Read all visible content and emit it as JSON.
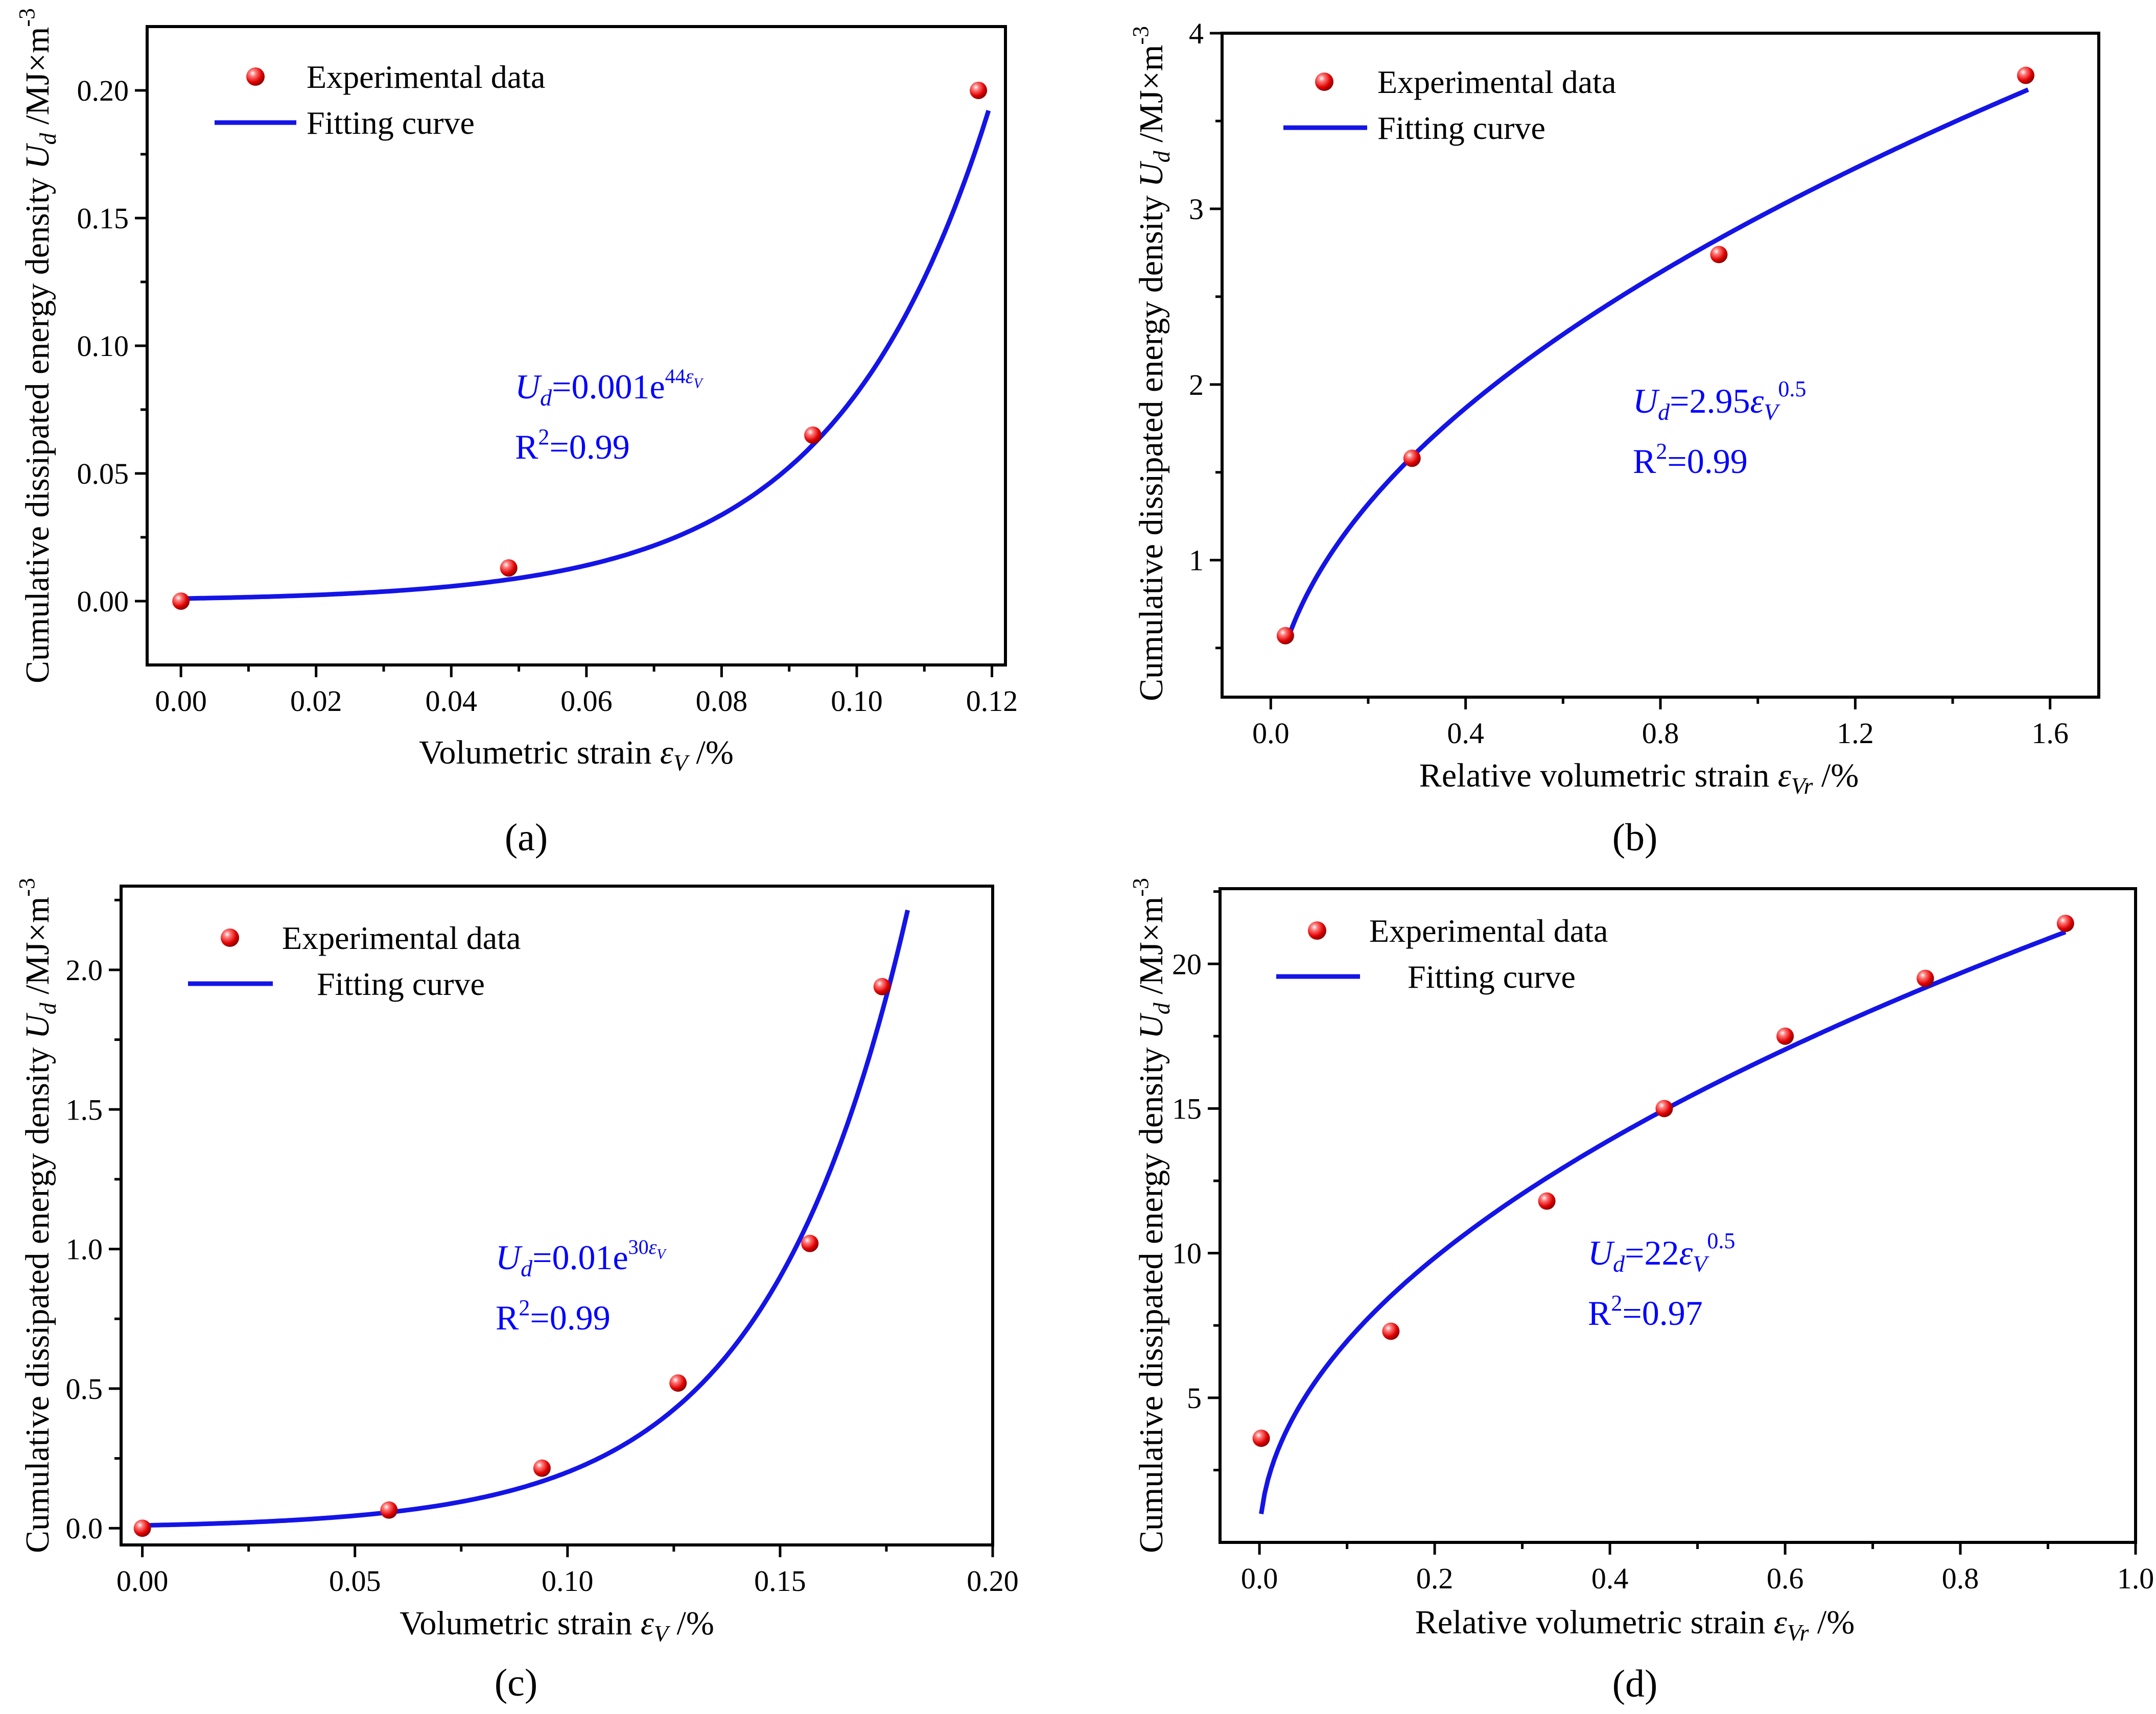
{
  "colors": {
    "point": "#e00000",
    "curve": "#1414e6",
    "annotation": "#0000ff",
    "axis": "#000000"
  },
  "chart_data": [
    {
      "panel": "(a)",
      "type": "scatter",
      "xlabel_main": "Volumetric strain",
      "xlabel_sym": "ε",
      "xlabel_sub": "V",
      "xlabel_unit": " /%",
      "ylabel_main": "Cumulative dissipated energy density ",
      "ylabel_sym": "U",
      "ylabel_sub": "d",
      "ylabel_unit": " /MJ×m",
      "ylabel_sup": "-3",
      "xlim": [
        -0.005,
        0.122
      ],
      "ylim": [
        -0.025,
        0.225
      ],
      "xticks": [
        0.0,
        0.02,
        0.04,
        0.06,
        0.08,
        0.1,
        0.12
      ],
      "xtick_labels": [
        "0.00",
        "0.02",
        "0.04",
        "0.06",
        "0.08",
        "0.10",
        "0.12"
      ],
      "yticks": [
        0.0,
        0.05,
        0.1,
        0.15,
        0.2
      ],
      "ytick_labels": [
        "0.00",
        "0.05",
        "0.10",
        "0.15",
        "0.20"
      ],
      "series": [
        {
          "name": "Experimental data",
          "kind": "points",
          "x": [
            0.0,
            0.0485,
            0.0935,
            0.118
          ],
          "y": [
            0.0,
            0.013,
            0.065,
            0.2
          ]
        },
        {
          "name": "Fitting curve",
          "kind": "fit",
          "model": "exp",
          "a": 0.001,
          "b": 44,
          "x_range": [
            0.0,
            0.1195
          ]
        }
      ],
      "legend": {
        "points": "Experimental data",
        "curve": "Fitting curve",
        "position": "top-left"
      },
      "annotation": {
        "eq_sym": "U",
        "eq_sub": "d",
        "eq_rhs": "=0.001e",
        "eq_exp": "44",
        "eq_exp_sym": "ε",
        "eq_exp_sub": "V",
        "r2_lead": "R",
        "r2_sup": "2",
        "r2_rest": "=0.99"
      }
    },
    {
      "panel": "(b)",
      "type": "scatter",
      "xlabel_main": "Relative volumetric strain",
      "xlabel_sym": "ε",
      "xlabel_sub": "Vr",
      "xlabel_unit": " /%",
      "ylabel_main": "Cumulative dissipated energy density ",
      "ylabel_sym": "U",
      "ylabel_sub": "d",
      "ylabel_unit": " /MJ×m",
      "ylabel_sup": "-3",
      "xlim": [
        -0.1,
        1.7
      ],
      "ylim": [
        0.22,
        4.0
      ],
      "xticks": [
        0.0,
        0.4,
        0.8,
        1.2,
        1.6
      ],
      "xtick_labels": [
        "0.0",
        "0.4",
        "0.8",
        "1.2",
        "1.6"
      ],
      "yticks": [
        1,
        2,
        3,
        4
      ],
      "ytick_labels": [
        "1",
        "2",
        "3",
        "4"
      ],
      "series": [
        {
          "name": "Experimental data",
          "kind": "points",
          "x": [
            0.03,
            0.29,
            0.92,
            1.55
          ],
          "y": [
            0.57,
            1.58,
            2.74,
            3.76
          ]
        },
        {
          "name": "Fitting curve",
          "kind": "fit",
          "model": "sqrt",
          "a": 2.95,
          "p": 0.5,
          "x_range": [
            0.035,
            1.555
          ]
        }
      ],
      "legend": {
        "points": "Experimental data",
        "curve": "Fitting curve",
        "position": "top-left"
      },
      "annotation": {
        "eq_sym": "U",
        "eq_sub": "d",
        "eq_rhs": "=2.95",
        "eq_var": "ε",
        "eq_var_sub": "V",
        "eq_pow": "0.5",
        "r2_lead": "R",
        "r2_sup": "2",
        "r2_rest": "=0.99"
      }
    },
    {
      "panel": "(c)",
      "type": "scatter",
      "xlabel_main": "Volumetric strain",
      "xlabel_sym": "ε",
      "xlabel_sub": "V",
      "xlabel_unit": " /%",
      "ylabel_main": "Cumulative dissipated energy density ",
      "ylabel_sym": "U",
      "ylabel_sub": "d",
      "ylabel_unit": " /MJ×m",
      "ylabel_sup": "-3",
      "xlim": [
        -0.005,
        0.2
      ],
      "ylim": [
        -0.06,
        2.3
      ],
      "xticks": [
        0.0,
        0.05,
        0.1,
        0.15,
        0.2
      ],
      "xtick_labels": [
        "0.00",
        "0.05",
        "0.10",
        "0.15",
        "0.20"
      ],
      "yticks": [
        0.0,
        0.5,
        1.0,
        1.5,
        2.0
      ],
      "ytick_labels": [
        "0.0",
        "0.5",
        "1.0",
        "1.5",
        "2.0"
      ],
      "series": [
        {
          "name": "Experimental data",
          "kind": "points",
          "x": [
            0.0,
            0.058,
            0.094,
            0.126,
            0.157,
            0.174
          ],
          "y": [
            0.0,
            0.065,
            0.215,
            0.52,
            1.02,
            1.94
          ]
        },
        {
          "name": "Fitting curve",
          "kind": "fit",
          "model": "exp",
          "a": 0.01,
          "b": 30,
          "x_range": [
            0.0,
            0.18
          ]
        }
      ],
      "legend": {
        "points": "Experimental data",
        "curve": "Fitting curve",
        "position": "top-left"
      },
      "annotation": {
        "eq_sym": "U",
        "eq_sub": "d",
        "eq_rhs": "=0.01e",
        "eq_exp": "30",
        "eq_exp_sym": "ε",
        "eq_exp_sub": "V",
        "r2_lead": "R",
        "r2_sup": "2",
        "r2_rest": "=0.99"
      }
    },
    {
      "panel": "(d)",
      "type": "scatter",
      "xlabel_main": "Relative volumetric strain",
      "xlabel_sym": "ε",
      "xlabel_sub": "Vr",
      "xlabel_unit": " /%",
      "ylabel_main": "Cumulative dissipated energy density ",
      "ylabel_sym": "U",
      "ylabel_sub": "d",
      "ylabel_unit": " /MJ×m",
      "ylabel_sup": "-3",
      "xlim": [
        -0.045,
        1.0
      ],
      "ylim": [
        0.0,
        22.6
      ],
      "xticks": [
        0.0,
        0.2,
        0.4,
        0.6,
        0.8,
        1.0
      ],
      "xtick_labels": [
        "0.0",
        "0.2",
        "0.4",
        "0.6",
        "0.8",
        "1.0"
      ],
      "yticks": [
        5,
        10,
        15,
        20
      ],
      "ytick_labels": [
        "5",
        "10",
        "15",
        "20"
      ],
      "series": [
        {
          "name": "Experimental data",
          "kind": "points",
          "x": [
            0.002,
            0.15,
            0.328,
            0.462,
            0.6,
            0.76,
            0.92
          ],
          "y": [
            3.6,
            7.3,
            11.8,
            15.0,
            17.5,
            19.5,
            21.4
          ]
        },
        {
          "name": "Fitting curve",
          "kind": "fit",
          "model": "sqrt",
          "a": 22,
          "p": 0.5,
          "x_range": [
            0.002,
            0.92
          ]
        }
      ],
      "legend": {
        "points": "Experimental data",
        "curve": "Fitting curve",
        "position": "top-left"
      },
      "annotation": {
        "eq_sym": "U",
        "eq_sub": "d",
        "eq_rhs": "=22",
        "eq_var": "ε",
        "eq_var_sub": "V",
        "eq_pow": "0.5",
        "r2_lead": "R",
        "r2_sup": "2",
        "r2_rest": "=0.97"
      }
    }
  ]
}
